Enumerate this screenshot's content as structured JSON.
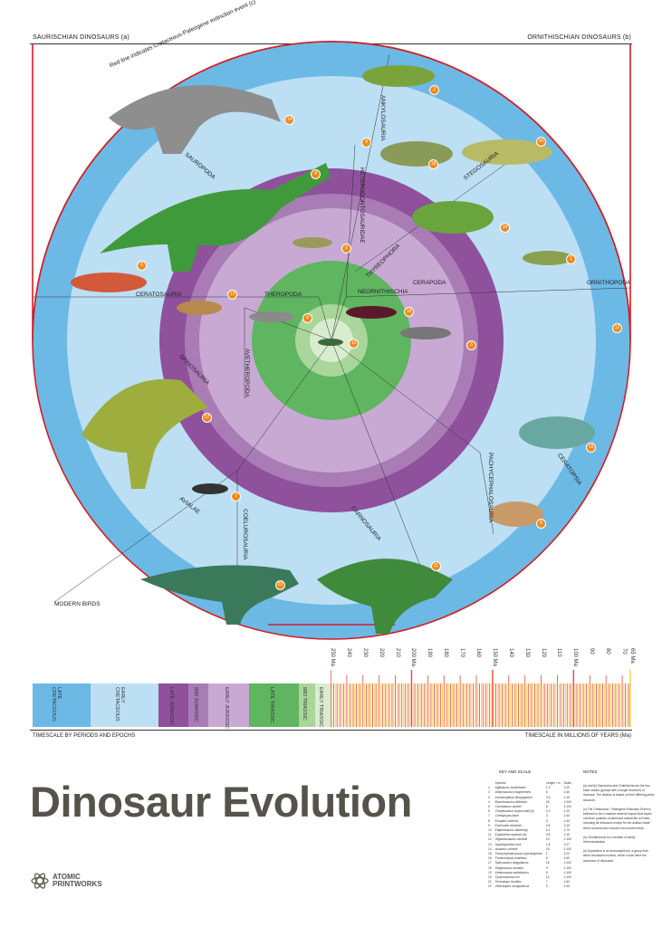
{
  "header": {
    "left": "SAURISCHIAN DINOSAURS (a)",
    "right": "ORNITHISCHIAN DINOSAURS (b)",
    "extinction_note": "Red line indicates Cretaceous-Paleogene extinction event (c)"
  },
  "clades": {
    "sauropoda": "SAUROPODA",
    "ankylosauria": "ANKYLOSAURIA",
    "stegosauria": "STEGOSAURIA",
    "heterodontosauridae": "HETERODONTOSAURIDAE",
    "thyreophora": "THYREOPHORA",
    "cerapoda": "CERAPODA",
    "ornithopoda": "ORNITHOPODA",
    "ceratosauria": "CERATOSAURIA",
    "theropoda": "THEROPODA",
    "neornithischia": "NEORNITHISCHIA",
    "avetheropoda": "AVETHEROPODA",
    "spinosauria": "SPINOSAURIA",
    "pachycephalosauria": "PACHYCEPHALOSAURIA",
    "ceratopsia": "CERATOPSIA",
    "avialae": "AVIALAE",
    "coelurosauria": "COELUROSAURIA",
    "carnosauria": "CARNOSAURIA",
    "modern_birds": "MODERN BIRDS"
  },
  "markers": [
    "2",
    "14",
    "8",
    "20",
    "18",
    "4",
    "19",
    "5",
    "1",
    "6",
    "13",
    "16",
    "9",
    "12",
    "10",
    "3",
    "17",
    "15",
    "7",
    "8",
    "11",
    "22"
  ],
  "timescale": {
    "ticks": [
      "250 Ma",
      "240",
      "230",
      "220",
      "210",
      "200 Ma",
      "190",
      "180",
      "170",
      "160",
      "150 Ma",
      "140",
      "130",
      "120",
      "110",
      "100 Ma",
      "90",
      "80",
      "70",
      "65 Ma"
    ],
    "periods": [
      "LATE\nCRETACEOUS",
      "EARLY\nCRETACEOUS",
      "LATE JURASSIC",
      "MID JURASSIC",
      "EARLY JURASSIC",
      "LATE TRIASSIC",
      "MID TRIASSIC",
      "EARLY TRIASSIC"
    ],
    "left_caption": "TIMESCALE BY PERIODS AND EPOCHS",
    "right_caption": "TIMESCALE IN MILLIONS OF YEARS (Ma)"
  },
  "colors": {
    "late_cretaceous": "#6cb9e6",
    "early_cretaceous": "#bcdff4",
    "late_jurassic": "#8f509c",
    "mid_jurassic": "#a97cb6",
    "early_jurassic": "#c8a9d4",
    "late_triassic": "#5fb560",
    "mid_triassic": "#a9d69a",
    "early_triassic": "#d8ecd0",
    "extinction": "#d11f26",
    "marker": "#f08a1d"
  },
  "title": "Dinosaur Evolution",
  "logo": {
    "line1": "ATOMIC",
    "line2": "PRINTWORKS"
  },
  "key": {
    "heading": "KEY AND SCALE",
    "columns": [
      "Species",
      "Length / m",
      "Scale"
    ],
    "rows": [
      [
        "1",
        "Agilisaurus louderbacki",
        "1.2",
        "1:20"
      ],
      [
        "2",
        "Ankylosaurus magniventris",
        "6",
        "1:40"
      ],
      [
        "3",
        "Archaeopteryx lithographica",
        "0.5",
        "1:15"
      ],
      [
        "4",
        "Brachiosaurus altithorax",
        "26",
        "1:200"
      ],
      [
        "5",
        "Carnotaurus sastrei",
        "8",
        "1:100"
      ],
      [
        "6",
        "Chindesaurus bryansmalli (d)",
        "2.3",
        "1:20"
      ],
      [
        "7",
        "Coelophysis bauri",
        "3",
        "1:40"
      ],
      [
        "8",
        "Eoraptor lunensis",
        "5",
        "1:40"
      ],
      [
        "9",
        "Echinodon becklesii",
        "0.6",
        "1:15"
      ],
      [
        "10",
        "Elaphrosaurus bambergi",
        "6.2",
        "1:70"
      ],
      [
        "11",
        "Euparkeria capensis (e)",
        "0.6",
        "1:15"
      ],
      [
        "12",
        "Giganotosaurus carolinii",
        "13",
        "1:100"
      ],
      [
        "13",
        "Hypsilophodon foxii",
        "1.8",
        "1:27"
      ],
      [
        "14",
        "Isisaurus colberti",
        "18",
        "1:100"
      ],
      [
        "15",
        "Pachycephalosaurus wyomingensis",
        "1",
        "1:20"
      ],
      [
        "16",
        "Protoceratops andrewsi",
        "5",
        "1:60"
      ],
      [
        "17",
        "Spinosaurus aegyptiacus",
        "18",
        "1:100"
      ],
      [
        "18",
        "Stegosaurus armatus",
        "9",
        "1:100"
      ],
      [
        "19",
        "Kentrosaurus aethiopicus",
        "5",
        "1:100"
      ],
      [
        "20",
        "Tyrannosaurus rex",
        "12",
        "1:100"
      ],
      [
        "21",
        "Triceratops horridus",
        "7",
        "1:60"
      ],
      [
        "22",
        "Velociraptor mongoliensis",
        "3",
        "1:40"
      ]
    ]
  },
  "notes": {
    "heading": "NOTES",
    "items": [
      "(a) and (b) Saurischia and Ornithischia are the two basic clades (groups with a single ancestor) of dinosaur. The division is based on their differing pelvic structure.",
      "(c) The Cretaceous - Paleogene Extinction Event is believed to be a massive asteroid impact that wiped out three quarters of plant and animal life on Earth, including all dinosaurs except for the avialan clade which survived and evolved into modern birds.",
      "(d) Chindesaurus is a member of family Herrerasauridae.",
      "(e) Euparkeria is an archosauriform, a group from which dinosaurs evolved, which in turn were the ancestors of dinosaurs."
    ]
  }
}
